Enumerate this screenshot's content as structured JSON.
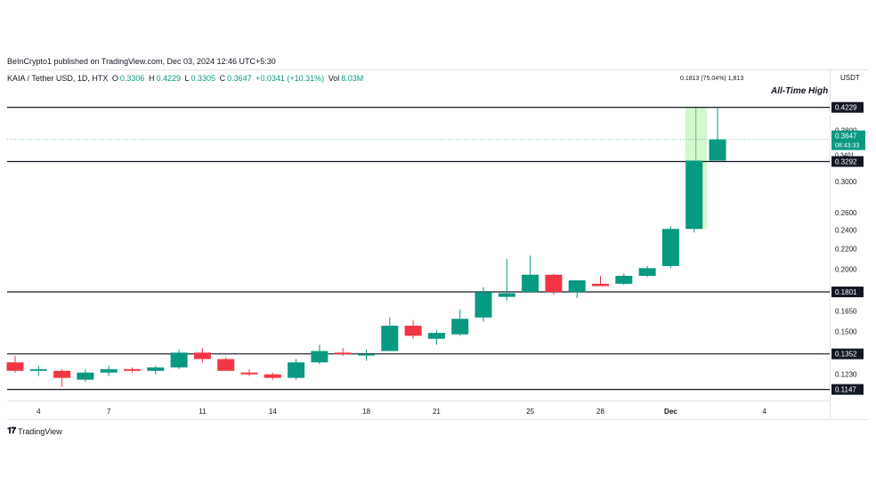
{
  "header": {
    "published": "BeInCrypto1 published on TradingView.com, Dec 03, 2024 12:46 UTC+5:30",
    "symbol": "KAIA / Tether USD, 1D, HTX",
    "open_label": "O",
    "open": "0.3306",
    "high_label": "H",
    "high": "0.4229",
    "low_label": "L",
    "low": "0.3305",
    "close_label": "C",
    "close": "0.3647",
    "change": "+0.0341 (+10.31%)",
    "vol_label": "Vol",
    "vol": "8.03M",
    "currency": "USDT"
  },
  "annotations": {
    "ath_label": "All-Time High",
    "measure_label": "0.1813 (75.04%) 1,813",
    "countdown": "08:43:33",
    "hidden_tag": "0.3401"
  },
  "footer": {
    "brand": "TradingView"
  },
  "colors": {
    "up": "#089981",
    "down": "#f23645",
    "range_fill": "#b7f0b0",
    "range_line": "#5bd05b"
  },
  "chart_data": {
    "type": "candlestick",
    "ylim": [
      0.109,
      0.47
    ],
    "log_scale": true,
    "x_tick_labels": [
      "4",
      "7",
      "11",
      "14",
      "18",
      "21",
      "25",
      "28",
      "Dec",
      "4"
    ],
    "y_tick_labels": [
      "0.3800",
      "0.3000",
      "0.2600",
      "0.2400",
      "0.2200",
      "0.2000",
      "0.1650",
      "0.1500",
      "0.1230"
    ],
    "levels": [
      "0.4229",
      "0.3292",
      "0.1801",
      "0.1352",
      "0.1147"
    ],
    "last_price": "0.3647",
    "candles": [
      {
        "o": 0.13,
        "h": 0.134,
        "l": 0.124,
        "c": 0.125
      },
      {
        "o": 0.125,
        "h": 0.128,
        "l": 0.122,
        "c": 0.126
      },
      {
        "o": 0.125,
        "h": 0.126,
        "l": 0.116,
        "c": 0.121
      },
      {
        "o": 0.12,
        "h": 0.126,
        "l": 0.119,
        "c": 0.124
      },
      {
        "o": 0.124,
        "h": 0.128,
        "l": 0.122,
        "c": 0.126
      },
      {
        "o": 0.126,
        "h": 0.127,
        "l": 0.124,
        "c": 0.125
      },
      {
        "o": 0.125,
        "h": 0.128,
        "l": 0.123,
        "c": 0.127
      },
      {
        "o": 0.127,
        "h": 0.138,
        "l": 0.126,
        "c": 0.136
      },
      {
        "o": 0.136,
        "h": 0.139,
        "l": 0.13,
        "c": 0.132
      },
      {
        "o": 0.132,
        "h": 0.133,
        "l": 0.125,
        "c": 0.125
      },
      {
        "o": 0.124,
        "h": 0.126,
        "l": 0.122,
        "c": 0.123
      },
      {
        "o": 0.123,
        "h": 0.124,
        "l": 0.12,
        "c": 0.121
      },
      {
        "o": 0.121,
        "h": 0.132,
        "l": 0.12,
        "c": 0.13
      },
      {
        "o": 0.13,
        "h": 0.141,
        "l": 0.129,
        "c": 0.137
      },
      {
        "o": 0.136,
        "h": 0.139,
        "l": 0.134,
        "c": 0.135
      },
      {
        "o": 0.135,
        "h": 0.138,
        "l": 0.131,
        "c": 0.135
      },
      {
        "o": 0.137,
        "h": 0.16,
        "l": 0.137,
        "c": 0.154
      },
      {
        "o": 0.154,
        "h": 0.158,
        "l": 0.145,
        "c": 0.147
      },
      {
        "o": 0.145,
        "h": 0.151,
        "l": 0.141,
        "c": 0.149
      },
      {
        "o": 0.148,
        "h": 0.166,
        "l": 0.147,
        "c": 0.159
      },
      {
        "o": 0.16,
        "h": 0.184,
        "l": 0.157,
        "c": 0.18
      },
      {
        "o": 0.176,
        "h": 0.21,
        "l": 0.173,
        "c": 0.179
      },
      {
        "o": 0.18,
        "h": 0.213,
        "l": 0.18,
        "c": 0.195
      },
      {
        "o": 0.195,
        "h": 0.196,
        "l": 0.178,
        "c": 0.18
      },
      {
        "o": 0.18,
        "h": 0.19,
        "l": 0.175,
        "c": 0.19
      },
      {
        "o": 0.187,
        "h": 0.194,
        "l": 0.185,
        "c": 0.185
      },
      {
        "o": 0.187,
        "h": 0.196,
        "l": 0.186,
        "c": 0.194
      },
      {
        "o": 0.194,
        "h": 0.203,
        "l": 0.193,
        "c": 0.201
      },
      {
        "o": 0.203,
        "h": 0.244,
        "l": 0.201,
        "c": 0.241
      },
      {
        "o": 0.241,
        "h": 0.3306,
        "l": 0.237,
        "c": 0.3306
      },
      {
        "o": 0.3306,
        "h": 0.4229,
        "l": 0.3305,
        "c": 0.3647
      }
    ]
  }
}
